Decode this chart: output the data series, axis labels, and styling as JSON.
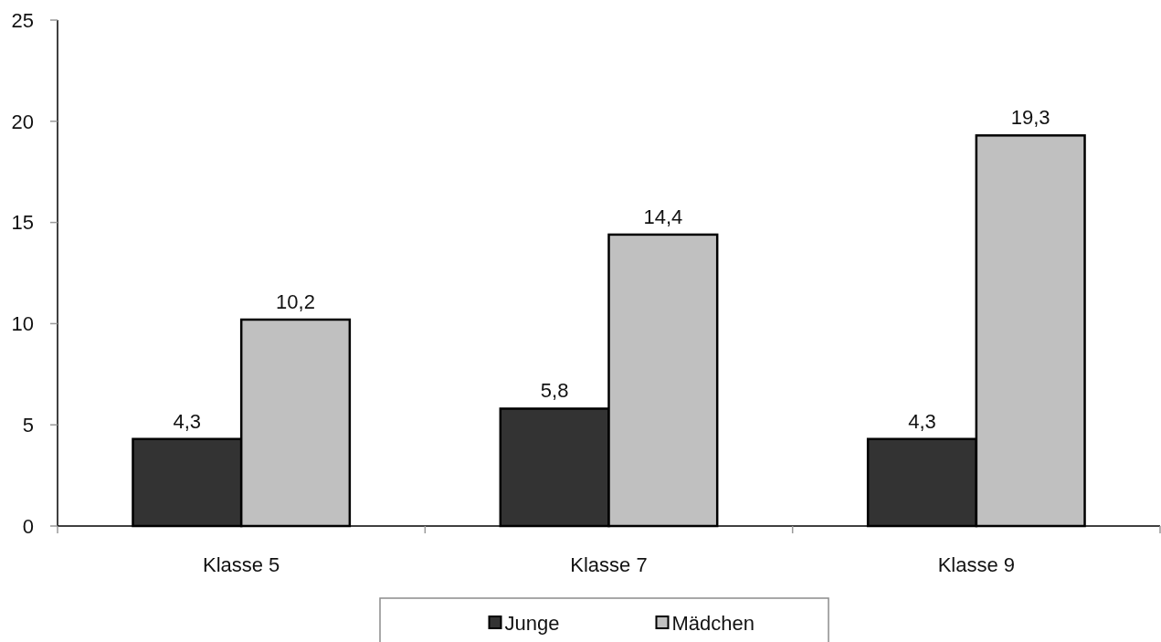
{
  "chart_data": {
    "type": "bar",
    "categories": [
      "Klasse 5",
      "Klasse 7",
      "Klasse 9"
    ],
    "series": [
      {
        "name": "Junge",
        "color": "#333333",
        "values": [
          4.3,
          5.8,
          4.3
        ],
        "value_labels": [
          "4,3",
          "5,8",
          "4,3"
        ]
      },
      {
        "name": "Mädchen",
        "color": "#c0c0c0",
        "values": [
          10.2,
          14.4,
          19.3
        ],
        "value_labels": [
          "10,2",
          "14,4",
          "19,3"
        ]
      }
    ],
    "ylim": [
      0,
      25
    ],
    "yticks": [
      0,
      5,
      10,
      15,
      20,
      25
    ],
    "legend": "bottom"
  }
}
